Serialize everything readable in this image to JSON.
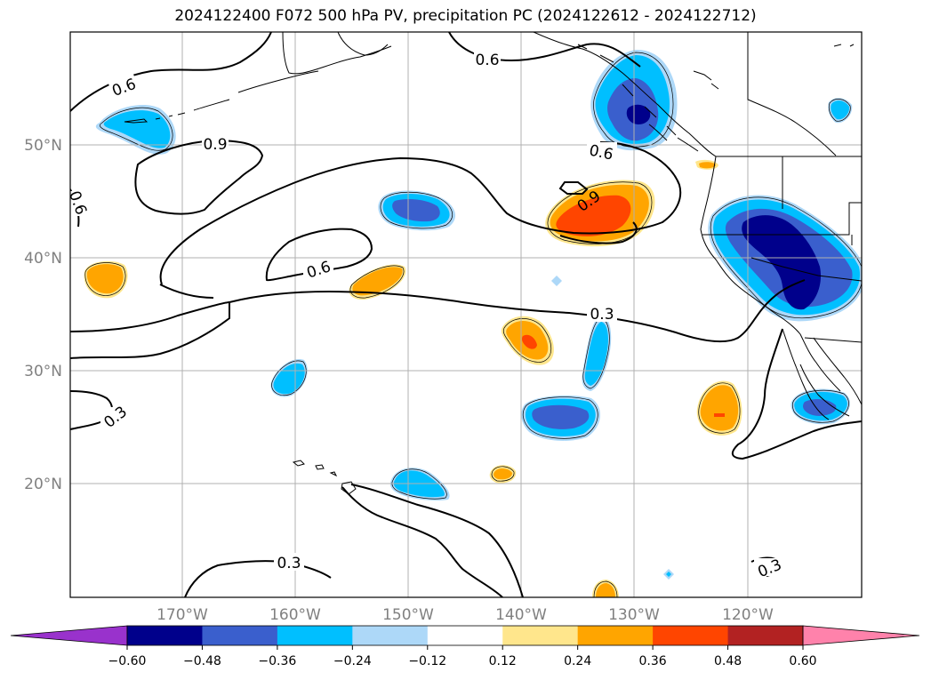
{
  "title": "2024122400 F072 500 hPa PV, precipitation PC (2024122612 - 2024122712)",
  "latitude_labels": [
    "50°N",
    "40°N",
    "30°N",
    "20°N"
  ],
  "longitude_labels": [
    "170°W",
    "160°W",
    "150°W",
    "140°W",
    "130°W",
    "120°W"
  ],
  "contour_labels": [
    "0.6",
    "0.6",
    "0.9",
    "0.6",
    "0.6",
    "0.9",
    "0.6",
    "0.3",
    "0.3",
    "0.3",
    "0.3"
  ],
  "colorbar": {
    "tick_labels": [
      "−0.60",
      "−0.48",
      "−0.36",
      "−0.24",
      "−0.12",
      "0.12",
      "0.24",
      "0.36",
      "0.48",
      "0.60"
    ],
    "colors": [
      "#9932cc",
      "#00008b",
      "#3a5fcd",
      "#00bfff",
      "#add8f8",
      "#ffffff",
      "#ffe68c",
      "#ffa500",
      "#ff4500",
      "#b22222",
      "#ff82ab"
    ]
  },
  "colors": {
    "gridline": "#b0b0b0",
    "axis_label": "#808080",
    "coast": "#000000"
  }
}
